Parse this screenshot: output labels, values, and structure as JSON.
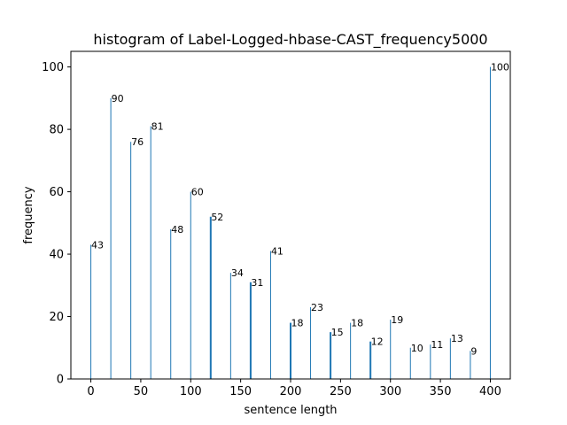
{
  "chart_data": {
    "type": "bar",
    "title": "histogram of Label-Logged-hbase-CAST_frequency5000",
    "xlabel": "sentence length",
    "ylabel": "frequency",
    "xlim": [
      -20,
      420
    ],
    "ylim": [
      0,
      105
    ],
    "xticks": [
      0,
      50,
      100,
      150,
      200,
      250,
      300,
      350,
      400
    ],
    "yticks": [
      0,
      20,
      40,
      60,
      80,
      100
    ],
    "bar_color": "#1f77b4",
    "grid": false,
    "x": [
      0,
      20,
      40,
      60,
      80,
      100,
      120,
      140,
      160,
      180,
      200,
      220,
      240,
      260,
      280,
      300,
      320,
      340,
      360,
      380,
      400
    ],
    "values": [
      43,
      90,
      76,
      81,
      48,
      60,
      52,
      34,
      31,
      41,
      18,
      23,
      15,
      18,
      12,
      19,
      10,
      11,
      13,
      9,
      100
    ],
    "thick_bars": [
      120,
      160,
      200,
      240,
      280
    ]
  }
}
